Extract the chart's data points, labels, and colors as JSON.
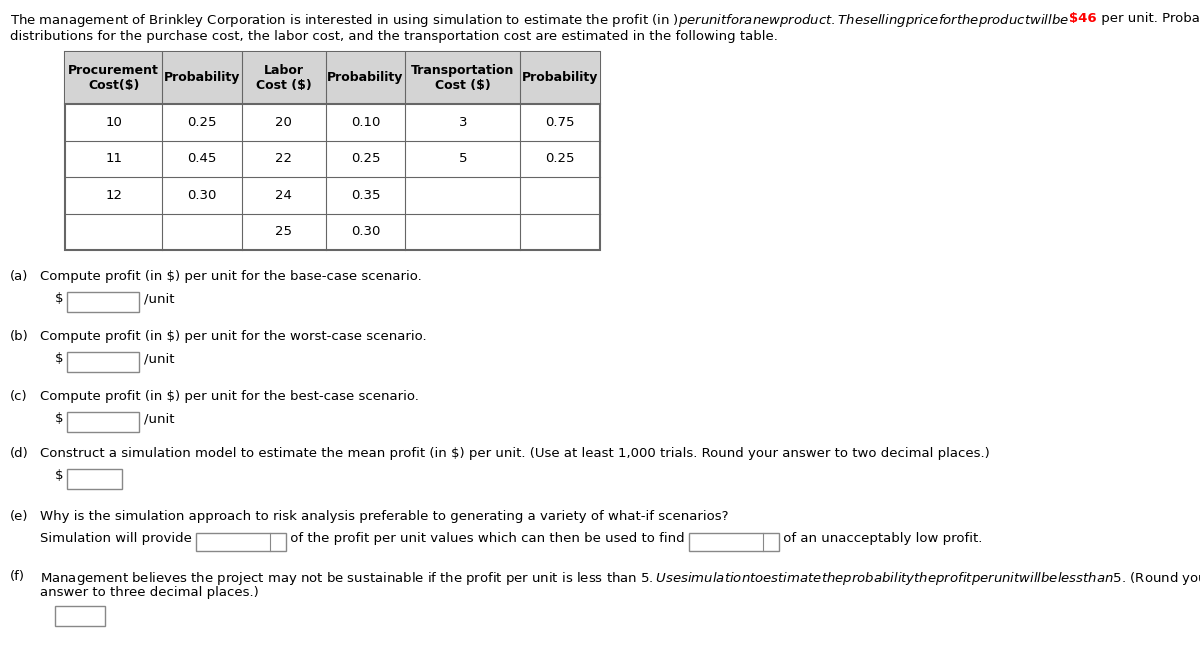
{
  "intro_part1": "The management of Brinkley Corporation is interested in using simulation to estimate the profit (in $) per unit for a new product. The selling price for the product will be $",
  "intro_highlight": "46",
  "intro_part2": " per unit. Probability",
  "intro_line2": "distributions for the purchase cost, the labor cost, and the transportation cost are estimated in the following table.",
  "table_header": [
    "Procurement\nCost($)",
    "Probability",
    "Labor\nCost ($)",
    "Probability",
    "Transportation\nCost ($)",
    "Probability"
  ],
  "table_rows": [
    [
      "10",
      "0.25",
      "20",
      "0.10",
      "3",
      "0.75"
    ],
    [
      "11",
      "0.45",
      "22",
      "0.25",
      "5",
      "0.25"
    ],
    [
      "12",
      "0.30",
      "24",
      "0.35",
      "",
      ""
    ],
    [
      "",
      "",
      "25",
      "0.30",
      "",
      ""
    ]
  ],
  "header_bg": "#d4d4d4",
  "table_border": "#666666",
  "bg_color": "#ffffff",
  "text_color": "#000000",
  "font_size": 9.5
}
